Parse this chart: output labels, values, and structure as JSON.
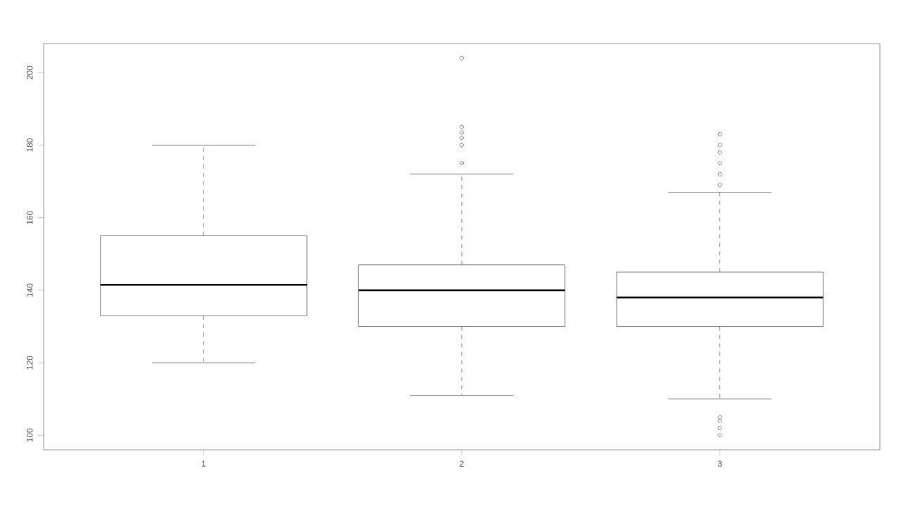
{
  "chart_data": {
    "type": "box",
    "categories": [
      "1",
      "2",
      "3"
    ],
    "boxes": [
      {
        "low": 120,
        "q1": 133,
        "median": 141.5,
        "q3": 155,
        "high": 180
      },
      {
        "low": 111,
        "q1": 130,
        "median": 140,
        "q3": 147,
        "high": 172,
        "outliers": [
          204,
          185,
          183.5,
          182,
          180,
          175
        ]
      },
      {
        "low": 110,
        "q1": 130,
        "median": 138,
        "q3": 145,
        "high": 167,
        "outliers": [
          183,
          180,
          178,
          175,
          172,
          169,
          105,
          104,
          102,
          100
        ]
      }
    ],
    "ylim": [
      96,
      208
    ],
    "yticks": [
      100,
      120,
      140,
      160,
      180,
      200
    ]
  }
}
